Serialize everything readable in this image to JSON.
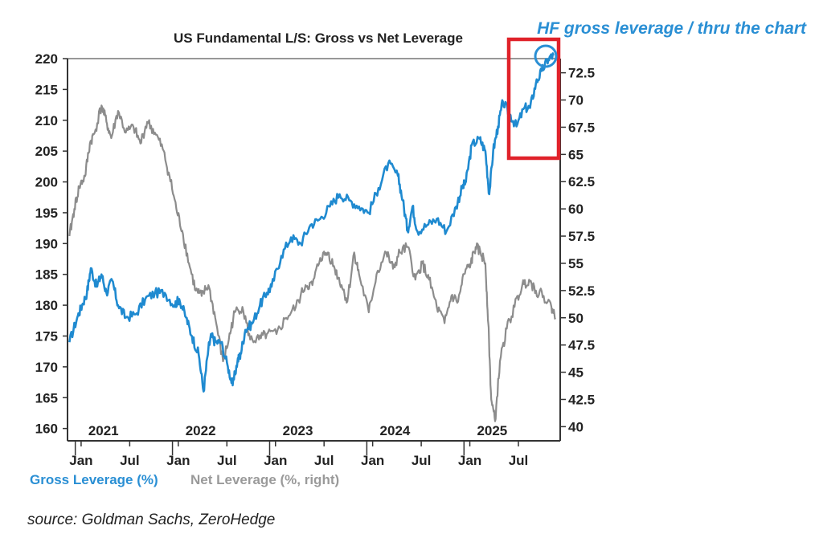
{
  "chart_data": {
    "type": "line",
    "title": "US Fundamental L/S: Gross vs Net Leverage",
    "annotation": "HF gross leverage / thru the chart",
    "source": "source: Goldman Sachs, ZeroHedge",
    "left_axis": {
      "ylim": [
        158,
        220
      ],
      "ticks": [
        "220",
        "215",
        "210",
        "205",
        "200",
        "195",
        "190",
        "185",
        "180",
        "175",
        "170",
        "165",
        "160"
      ]
    },
    "right_axis": {
      "ylim": [
        38.7,
        73.8
      ],
      "ticks": [
        "72.5",
        "70",
        "67.5",
        "65",
        "62.5",
        "60",
        "57.5",
        "55",
        "52.5",
        "50",
        "47.5",
        "45",
        "42.5",
        "40"
      ]
    },
    "x_axis": {
      "month_labels": [
        "Jan",
        "Jul",
        "Jan",
        "Jul",
        "Jan",
        "Jul",
        "Jan",
        "Jul",
        "Jan",
        "Jul"
      ],
      "year_labels": [
        "2021",
        "2022",
        "2023",
        "2024",
        "2025"
      ]
    },
    "legend": {
      "gross_label": "Gross Leverage (%)",
      "net_label": "Net Leverage (%, right)"
    },
    "colors": {
      "gross": "#1f8ad0",
      "net": "#8c8c8c",
      "annotation": "#2a8fd4",
      "highlight_box": "#e0222a"
    },
    "series": [
      {
        "name": "Gross Leverage (%)",
        "axis": "left",
        "x": [
          2020.92,
          2021.0,
          2021.05,
          2021.1,
          2021.14,
          2021.2,
          2021.25,
          2021.3,
          2021.36,
          2021.42,
          2021.5,
          2021.6,
          2021.7,
          2021.8,
          2021.9,
          2022.0,
          2022.05,
          2022.12,
          2022.18,
          2022.25,
          2022.3,
          2022.35,
          2022.38,
          2022.42,
          2022.48,
          2022.55,
          2022.6,
          2022.65,
          2022.68,
          2022.73,
          2022.8,
          2022.88,
          2022.95,
          2023.0,
          2023.1,
          2023.2,
          2023.3,
          2023.4,
          2023.5,
          2023.6,
          2023.7,
          2023.8,
          2023.9,
          2024.0,
          2024.1,
          2024.2,
          2024.3,
          2024.35,
          2024.4,
          2024.45,
          2024.5,
          2024.6,
          2024.7,
          2024.8,
          2024.9,
          2024.96,
          2025.0,
          2025.06,
          2025.14,
          2025.2,
          2025.24,
          2025.28,
          2025.33,
          2025.38,
          2025.45,
          2025.52,
          2025.6,
          2025.66,
          2025.72,
          2025.78,
          2025.85,
          2025.9
        ],
        "values": [
          174,
          178,
          180,
          182,
          186,
          183,
          185,
          182,
          184,
          180,
          178,
          178.5,
          181,
          182,
          182,
          180,
          181,
          178,
          175,
          172,
          166,
          173,
          175,
          174,
          174,
          170,
          167,
          171,
          172,
          176,
          177,
          180,
          182,
          183,
          188,
          191,
          190,
          193,
          194,
          196,
          198,
          197,
          196,
          195,
          199,
          203,
          201,
          197,
          192,
          196,
          192,
          193,
          194,
          192,
          196,
          199,
          200,
          206,
          207,
          205,
          198,
          205,
          209,
          213,
          211,
          209,
          212,
          212,
          216,
          218,
          220,
          220.5
        ]
      },
      {
        "name": "Net Leverage (%, right)",
        "axis": "right",
        "x": [
          2020.92,
          2020.97,
          2021.02,
          2021.08,
          2021.13,
          2021.18,
          2021.25,
          2021.3,
          2021.35,
          2021.42,
          2021.5,
          2021.58,
          2021.65,
          2021.72,
          2021.8,
          2021.88,
          2021.95,
          2022.02,
          2022.08,
          2022.15,
          2022.22,
          2022.28,
          2022.35,
          2022.42,
          2022.5,
          2022.56,
          2022.62,
          2022.7,
          2022.78,
          2022.87,
          2022.95,
          2023.05,
          2023.15,
          2023.25,
          2023.35,
          2023.42,
          2023.5,
          2023.58,
          2023.65,
          2023.72,
          2023.78,
          2023.85,
          2023.9,
          2024.0,
          2024.08,
          2024.18,
          2024.25,
          2024.32,
          2024.4,
          2024.48,
          2024.55,
          2024.62,
          2024.7,
          2024.78,
          2024.85,
          2024.92,
          2024.98,
          2025.05,
          2025.1,
          2025.15,
          2025.2,
          2025.23,
          2025.26,
          2025.3,
          2025.35,
          2025.42,
          2025.5,
          2025.58,
          2025.65,
          2025.72,
          2025.8,
          2025.88,
          2025.92
        ],
        "values": [
          57.5,
          60,
          62,
          63,
          66,
          67,
          69.5,
          68,
          66.5,
          69,
          67,
          67.5,
          66,
          68,
          67,
          65.5,
          63,
          60,
          58,
          55,
          52.5,
          52,
          53,
          50,
          46,
          48,
          50.5,
          51,
          48,
          48,
          48.5,
          48.5,
          50,
          51,
          53,
          53,
          55.5,
          56,
          54.5,
          53,
          51.5,
          56,
          54,
          50.5,
          54,
          56,
          54.5,
          56,
          56.5,
          53.5,
          55,
          53.5,
          51,
          49.5,
          52,
          51.5,
          54,
          55,
          56.5,
          56,
          55,
          49.5,
          42.5,
          40.5,
          46,
          49,
          51,
          53,
          53.5,
          52.5,
          52,
          51,
          50
        ]
      }
    ]
  }
}
